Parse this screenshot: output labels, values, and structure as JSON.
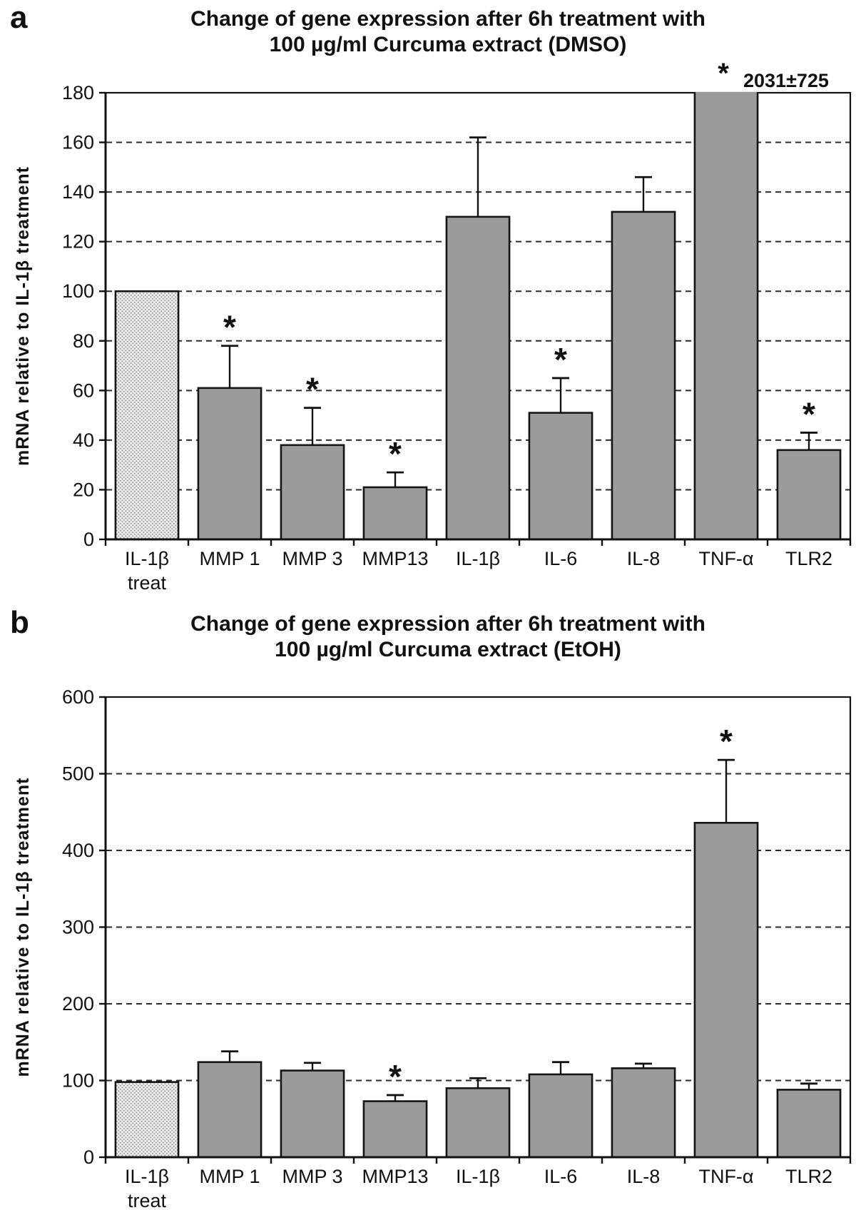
{
  "figure": {
    "background": "#ffffff",
    "bar_fill": "#9b9b9b",
    "bar_stroke": "#151515",
    "grid_color": "#2a2a2a"
  },
  "chart_data": [
    {
      "type": "bar",
      "panel_label": "a",
      "title_lines": [
        "Change of gene expression after 6h treatment with",
        "100 µg/ml Curcuma extract (DMSO)"
      ],
      "ylabel": "mRNA relative to IL-1β treatment",
      "ylim": [
        0,
        180
      ],
      "ytick_step": 20,
      "grid": "dashed-horizontal",
      "legend": "none",
      "categories": [
        "IL-1β\ntreat",
        "MMP 1",
        "MMP 3",
        "MMP13",
        "IL-1β",
        "IL-6",
        "IL-8",
        "TNF-α",
        "TLR2"
      ],
      "values": [
        100,
        61,
        38,
        21,
        130,
        51,
        132,
        2031,
        36
      ],
      "errors_plus": [
        0,
        17,
        15,
        6,
        32,
        14,
        14,
        725,
        7
      ],
      "significant": [
        false,
        true,
        true,
        true,
        false,
        true,
        false,
        true,
        true
      ],
      "baseline_bar_pattern": "stipple",
      "offscale_annotation": {
        "category": "TNF-α",
        "asterisk": "*",
        "text": "2031±725",
        "clipped_at": 180
      }
    },
    {
      "type": "bar",
      "panel_label": "b",
      "title_lines": [
        "Change of gene expression after 6h treatment with",
        "100 µg/ml Curcuma extract (EtOH)"
      ],
      "ylabel": "mRNA relative to IL-1β treatment",
      "ylim": [
        0,
        600
      ],
      "ytick_step": 100,
      "grid": "dashed-horizontal",
      "legend": "none",
      "categories": [
        "IL-1β\ntreat",
        "MMP 1",
        "MMP 3",
        "MMP13",
        "IL-1β",
        "IL-6",
        "IL-8",
        "TNF-α",
        "TLR2"
      ],
      "values": [
        98,
        124,
        113,
        73,
        90,
        108,
        116,
        436,
        88
      ],
      "errors_plus": [
        0,
        14,
        10,
        8,
        13,
        16,
        6,
        82,
        8
      ],
      "significant": [
        false,
        false,
        false,
        true,
        false,
        false,
        false,
        true,
        false
      ],
      "baseline_bar_pattern": "stipple",
      "offscale_annotation": null
    }
  ]
}
